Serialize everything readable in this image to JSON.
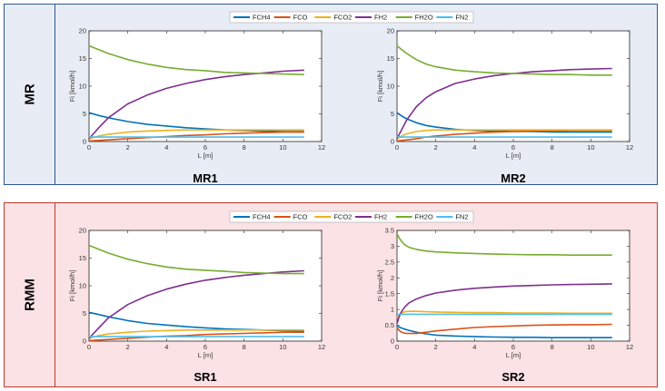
{
  "panels": [
    {
      "label": "MR",
      "background": "#e8edf5",
      "border": "#2f5597"
    },
    {
      "label": "RMM",
      "background": "#fbe2e4",
      "border": "#c0392b"
    }
  ],
  "legend": [
    "FCH4",
    "FCO",
    "FCO2",
    "FH2",
    "FH2O",
    "FN2"
  ],
  "series_colors": {
    "FCH4": "#0072bd",
    "FCO": "#d95319",
    "FCO2": "#edb120",
    "FH2": "#7e2f8e",
    "FH2O": "#77ac30",
    "FN2": "#4dbeee"
  },
  "chart_data": [
    {
      "type": "line",
      "title": "MR1",
      "xlabel": "L [m]",
      "ylabel": "Fi [kmol/h]",
      "xlim": [
        0,
        12
      ],
      "ylim": [
        0,
        20
      ],
      "xticks": [
        0,
        2,
        4,
        6,
        8,
        10,
        12
      ],
      "yticks": [
        0,
        5,
        10,
        15,
        20
      ],
      "x": [
        0,
        0.5,
        1,
        2,
        3,
        4,
        5,
        6,
        7,
        8,
        9,
        10,
        11.1
      ],
      "series": [
        {
          "name": "FCH4",
          "values": [
            5.2,
            4.7,
            4.3,
            3.6,
            3.1,
            2.8,
            2.5,
            2.3,
            2.1,
            2.0,
            1.9,
            1.8,
            1.8
          ]
        },
        {
          "name": "FCO",
          "values": [
            0.1,
            0.2,
            0.3,
            0.5,
            0.7,
            0.9,
            1.1,
            1.2,
            1.4,
            1.5,
            1.6,
            1.7,
            1.7
          ]
        },
        {
          "name": "FCO2",
          "values": [
            0.5,
            1.0,
            1.3,
            1.7,
            1.9,
            2.0,
            2.1,
            2.1,
            2.1,
            2.1,
            2.1,
            2.1,
            2.1
          ]
        },
        {
          "name": "FH2",
          "values": [
            0.5,
            2.5,
            4.3,
            6.8,
            8.4,
            9.6,
            10.5,
            11.2,
            11.7,
            12.1,
            12.4,
            12.7,
            12.9
          ]
        },
        {
          "name": "FH2O",
          "values": [
            17.3,
            16.6,
            15.9,
            14.8,
            14.0,
            13.4,
            13.0,
            12.8,
            12.5,
            12.4,
            12.3,
            12.2,
            12.1
          ]
        },
        {
          "name": "FN2",
          "values": [
            0.8,
            0.8,
            0.8,
            0.8,
            0.8,
            0.8,
            0.8,
            0.8,
            0.8,
            0.8,
            0.8,
            0.8,
            0.8
          ]
        }
      ]
    },
    {
      "type": "line",
      "title": "MR2",
      "xlabel": "L [m]",
      "ylabel": "Fi [kmol/h]",
      "xlim": [
        0,
        12
      ],
      "ylim": [
        0,
        20
      ],
      "xticks": [
        0,
        2,
        4,
        6,
        8,
        10,
        12
      ],
      "yticks": [
        0,
        5,
        10,
        15,
        20
      ],
      "x": [
        0,
        0.25,
        0.5,
        1,
        1.5,
        2,
        3,
        4,
        5,
        6,
        7,
        8,
        9,
        10,
        11.1
      ],
      "series": [
        {
          "name": "FCH4",
          "values": [
            5.2,
            4.6,
            4.1,
            3.4,
            2.9,
            2.6,
            2.2,
            2.0,
            1.9,
            1.8,
            1.8,
            1.7,
            1.7,
            1.7,
            1.7
          ]
        },
        {
          "name": "FCO",
          "values": [
            0.1,
            0.2,
            0.3,
            0.5,
            0.8,
            1.0,
            1.3,
            1.5,
            1.7,
            1.8,
            1.9,
            1.9,
            2.0,
            2.0,
            2.0
          ]
        },
        {
          "name": "FCO2",
          "values": [
            0.5,
            1.0,
            1.4,
            1.8,
            2.0,
            2.1,
            2.1,
            2.1,
            2.1,
            2.1,
            2.1,
            2.1,
            2.1,
            2.1,
            2.1
          ]
        },
        {
          "name": "FH2",
          "values": [
            0.5,
            2.2,
            3.9,
            6.3,
            7.9,
            9.0,
            10.5,
            11.3,
            11.9,
            12.3,
            12.6,
            12.8,
            13.0,
            13.1,
            13.2
          ]
        },
        {
          "name": "FH2O",
          "values": [
            17.3,
            16.6,
            15.9,
            14.8,
            14.0,
            13.5,
            12.9,
            12.6,
            12.4,
            12.3,
            12.2,
            12.1,
            12.1,
            12.0,
            12.0
          ]
        },
        {
          "name": "FN2",
          "values": [
            0.8,
            0.8,
            0.8,
            0.8,
            0.8,
            0.8,
            0.8,
            0.8,
            0.8,
            0.8,
            0.8,
            0.8,
            0.8,
            0.8,
            0.8
          ]
        }
      ]
    },
    {
      "type": "line",
      "title": "SR1",
      "xlabel": "L [m]",
      "ylabel": "Fi [kmol/h]",
      "xlim": [
        0,
        12
      ],
      "ylim": [
        0,
        20
      ],
      "xticks": [
        0,
        2,
        4,
        6,
        8,
        10,
        12
      ],
      "yticks": [
        0,
        5,
        10,
        15,
        20
      ],
      "x": [
        0,
        0.5,
        1,
        2,
        3,
        4,
        5,
        6,
        7,
        8,
        9,
        10,
        11.1
      ],
      "series": [
        {
          "name": "FCH4",
          "values": [
            5.2,
            4.8,
            4.4,
            3.7,
            3.2,
            2.9,
            2.6,
            2.4,
            2.2,
            2.1,
            2.0,
            1.9,
            1.8
          ]
        },
        {
          "name": "FCO",
          "values": [
            0.1,
            0.2,
            0.3,
            0.5,
            0.7,
            0.9,
            1.0,
            1.2,
            1.3,
            1.4,
            1.5,
            1.6,
            1.6
          ]
        },
        {
          "name": "FCO2",
          "values": [
            0.5,
            1.0,
            1.3,
            1.6,
            1.8,
            1.9,
            2.0,
            2.0,
            2.0,
            2.0,
            2.0,
            2.0,
            2.0
          ]
        },
        {
          "name": "FH2",
          "values": [
            0.5,
            2.4,
            4.2,
            6.6,
            8.2,
            9.4,
            10.3,
            11.0,
            11.5,
            11.9,
            12.2,
            12.5,
            12.7
          ]
        },
        {
          "name": "FH2O",
          "values": [
            17.3,
            16.6,
            15.9,
            14.8,
            14.0,
            13.4,
            13.0,
            12.8,
            12.6,
            12.4,
            12.3,
            12.2,
            12.2
          ]
        },
        {
          "name": "FN2",
          "values": [
            0.8,
            0.8,
            0.8,
            0.8,
            0.8,
            0.8,
            0.8,
            0.8,
            0.8,
            0.8,
            0.8,
            0.8,
            0.8
          ]
        }
      ]
    },
    {
      "type": "line",
      "title": "SR2",
      "xlabel": "L [m]",
      "ylabel": "Fi [kmol/h]",
      "xlim": [
        0,
        12
      ],
      "ylim": [
        0,
        3.5
      ],
      "xticks": [
        0,
        2,
        4,
        6,
        8,
        10,
        12
      ],
      "yticks": [
        0,
        0.5,
        1,
        1.5,
        2,
        2.5,
        3,
        3.5
      ],
      "x": [
        0,
        0.1,
        0.2,
        0.4,
        0.6,
        1,
        1.5,
        2,
        3,
        4,
        5,
        6,
        7,
        8,
        9,
        10,
        11.1
      ],
      "series": [
        {
          "name": "FCH4",
          "values": [
            0.48,
            0.45,
            0.42,
            0.38,
            0.34,
            0.28,
            0.23,
            0.19,
            0.16,
            0.14,
            0.13,
            0.12,
            0.12,
            0.11,
            0.11,
            0.11,
            0.11
          ]
        },
        {
          "name": "FCO",
          "values": [
            0.42,
            0.35,
            0.29,
            0.25,
            0.24,
            0.24,
            0.28,
            0.32,
            0.38,
            0.43,
            0.46,
            0.48,
            0.5,
            0.51,
            0.52,
            0.52,
            0.53
          ]
        },
        {
          "name": "FCO2",
          "values": [
            0.75,
            0.82,
            0.88,
            0.93,
            0.94,
            0.94,
            0.93,
            0.92,
            0.91,
            0.9,
            0.9,
            0.89,
            0.89,
            0.89,
            0.88,
            0.88,
            0.88
          ]
        },
        {
          "name": "FH2",
          "values": [
            0.55,
            0.75,
            0.9,
            1.08,
            1.2,
            1.33,
            1.44,
            1.52,
            1.61,
            1.67,
            1.71,
            1.74,
            1.76,
            1.78,
            1.79,
            1.8,
            1.81
          ]
        },
        {
          "name": "FH2O",
          "values": [
            3.4,
            3.28,
            3.18,
            3.05,
            2.97,
            2.9,
            2.85,
            2.82,
            2.79,
            2.77,
            2.75,
            2.74,
            2.73,
            2.73,
            2.72,
            2.72,
            2.72
          ]
        },
        {
          "name": "FN2",
          "values": [
            0.85,
            0.85,
            0.85,
            0.85,
            0.85,
            0.85,
            0.85,
            0.85,
            0.85,
            0.85,
            0.85,
            0.85,
            0.85,
            0.85,
            0.85,
            0.85,
            0.85
          ]
        }
      ]
    }
  ]
}
